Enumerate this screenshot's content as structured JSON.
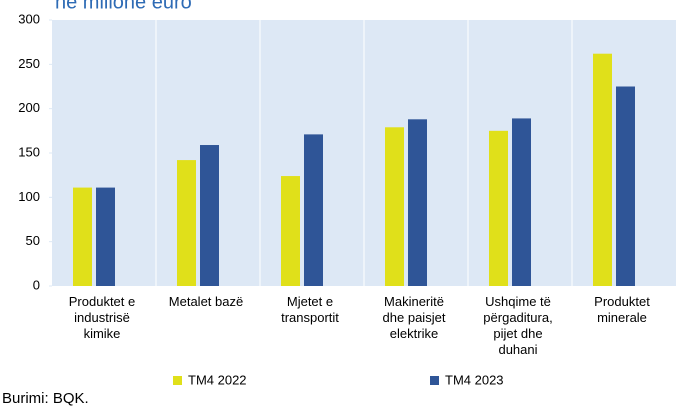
{
  "chart_data": {
    "type": "bar",
    "title": "në milionë euro",
    "categories": [
      [
        "Produktet e",
        "industrisë",
        "kimike"
      ],
      [
        "Metalet bazë"
      ],
      [
        "Mjetet e",
        "transportit"
      ],
      [
        "Makineritë",
        "dhe paisjet",
        "elektrike"
      ],
      [
        "Ushqime të",
        "përgaditura,",
        "pijet dhe",
        "duhani"
      ],
      [
        "Produktet",
        "minerale"
      ]
    ],
    "series": [
      {
        "name": "TM4 2022",
        "color": "#e0e01a",
        "values": [
          111,
          142,
          124,
          179,
          175,
          262
        ]
      },
      {
        "name": "TM4 2023",
        "color": "#2f5597",
        "values": [
          111,
          159,
          171,
          188,
          189,
          225
        ]
      }
    ],
    "ylim": [
      0,
      300
    ],
    "yticks": [
      0,
      50,
      100,
      150,
      200,
      250,
      300
    ],
    "source": "Burimi: BQK."
  }
}
